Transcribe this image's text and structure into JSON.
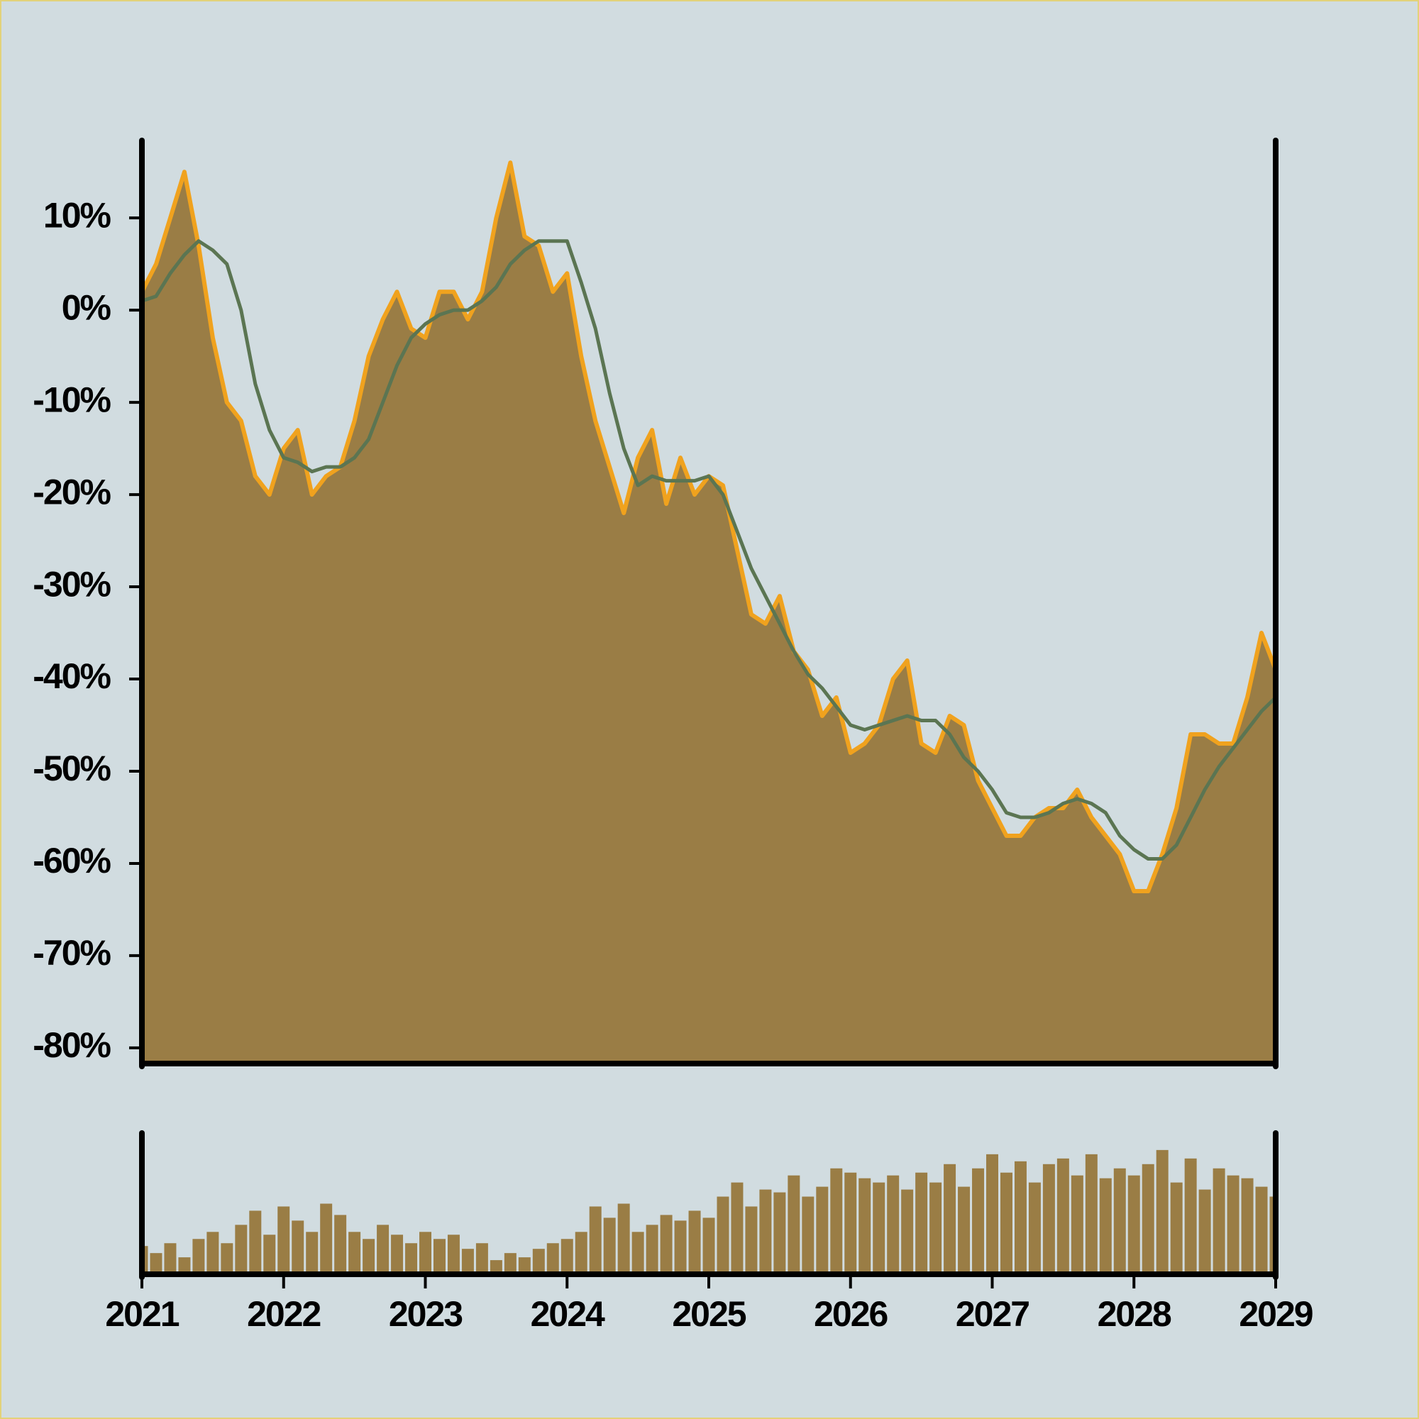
{
  "chart_data": [
    {
      "type": "area",
      "x": [
        2021.0,
        2021.1,
        2021.2,
        2021.3,
        2021.4,
        2021.5,
        2021.6,
        2021.7,
        2021.8,
        2021.9,
        2022.0,
        2022.1,
        2022.2,
        2022.3,
        2022.4,
        2022.5,
        2022.6,
        2022.7,
        2022.8,
        2022.9,
        2023.0,
        2023.1,
        2023.2,
        2023.3,
        2023.4,
        2023.5,
        2023.6,
        2023.7,
        2023.8,
        2023.9,
        2024.0,
        2024.1,
        2024.2,
        2024.3,
        2024.4,
        2024.5,
        2024.6,
        2024.7,
        2024.8,
        2024.9,
        2025.0,
        2025.1,
        2025.2,
        2025.3,
        2025.4,
        2025.5,
        2025.6,
        2025.7,
        2025.8,
        2025.9,
        2026.0,
        2026.1,
        2026.2,
        2026.3,
        2026.4,
        2026.5,
        2026.6,
        2026.7,
        2026.8,
        2026.9,
        2027.0,
        2027.1,
        2027.2,
        2027.3,
        2027.4,
        2027.5,
        2027.6,
        2027.7,
        2027.8,
        2027.9,
        2028.0,
        2028.1,
        2028.2,
        2028.3,
        2028.4,
        2028.5,
        2028.6,
        2028.7,
        2028.8,
        2028.9,
        2029.0
      ],
      "series": [
        {
          "kind": "area",
          "color": "#f0a21e",
          "fill": "#9a7d45",
          "values": [
            2,
            5,
            10,
            15,
            7,
            -3,
            -10,
            -12,
            -18,
            -20,
            -15,
            -13,
            -20,
            -18,
            -17,
            -12,
            -5,
            -1,
            2,
            -2,
            -3,
            2,
            2,
            -1,
            2,
            10,
            16,
            8,
            7,
            2,
            4,
            -5,
            -12,
            -17,
            -22,
            -16,
            -13,
            -21,
            -16,
            -20,
            -18,
            -19,
            -26,
            -33,
            -34,
            -31,
            -37,
            -39,
            -44,
            -42,
            -48,
            -47,
            -45,
            -40,
            -38,
            -47,
            -48,
            -44,
            -45,
            -51,
            -54,
            -57,
            -57,
            -55,
            -54,
            -54,
            -52,
            -55,
            -57,
            -59,
            -63,
            -63,
            -59,
            -54,
            -46,
            -46,
            -47,
            -47,
            -42,
            -35,
            -39
          ]
        },
        {
          "kind": "line",
          "color": "#5b7552",
          "values": [
            1,
            1.5,
            4,
            6,
            7.5,
            6.5,
            5,
            0,
            -8,
            -13,
            -16,
            -16.5,
            -17.5,
            -17,
            -17,
            -16,
            -14,
            -10,
            -6,
            -3,
            -1.5,
            -0.5,
            0,
            0,
            1,
            2.5,
            5,
            6.5,
            7.5,
            7.5,
            7.5,
            3,
            -2,
            -9,
            -15,
            -19,
            -18,
            -18.5,
            -18.5,
            -18.5,
            -18,
            -20,
            -24,
            -28,
            -31,
            -34,
            -37,
            -39.5,
            -41,
            -43,
            -45,
            -45.5,
            -45,
            -44.5,
            -44,
            -44.5,
            -44.5,
            -46,
            -48.5,
            -50,
            -52,
            -54.5,
            -55,
            -55,
            -54.5,
            -53.5,
            -53,
            -53.5,
            -54.5,
            -57,
            -58.5,
            -59.5,
            -59.5,
            -58,
            -55,
            -52,
            -49.5,
            -47.5,
            -45.5,
            -43.5,
            -42
          ]
        }
      ],
      "xlim": [
        2021,
        2029
      ],
      "ylim": [
        -81.7,
        18.4
      ],
      "yticks": [
        {
          "value": 10,
          "label": "10%"
        },
        {
          "value": 0,
          "label": "0%"
        },
        {
          "value": -10,
          "label": "-10%"
        },
        {
          "value": -20,
          "label": "-20%"
        },
        {
          "value": -30,
          "label": "-30%"
        },
        {
          "value": -40,
          "label": "-40%"
        },
        {
          "value": -50,
          "label": "-50%"
        },
        {
          "value": -60,
          "label": "-60%"
        },
        {
          "value": -70,
          "label": "-70%"
        },
        {
          "value": -80,
          "label": "-80%"
        }
      ]
    },
    {
      "type": "bar",
      "x": [
        2021.0,
        2021.1,
        2021.2,
        2021.3,
        2021.4,
        2021.5,
        2021.6,
        2021.7,
        2021.8,
        2021.9,
        2022.0,
        2022.1,
        2022.2,
        2022.3,
        2022.4,
        2022.5,
        2022.6,
        2022.7,
        2022.8,
        2022.9,
        2023.0,
        2023.1,
        2023.2,
        2023.3,
        2023.4,
        2023.5,
        2023.6,
        2023.7,
        2023.8,
        2023.9,
        2024.0,
        2024.1,
        2024.2,
        2024.3,
        2024.4,
        2024.5,
        2024.6,
        2024.7,
        2024.8,
        2024.9,
        2025.0,
        2025.1,
        2025.2,
        2025.3,
        2025.4,
        2025.5,
        2025.6,
        2025.7,
        2025.8,
        2025.9,
        2026.0,
        2026.1,
        2026.2,
        2026.3,
        2026.4,
        2026.5,
        2026.6,
        2026.7,
        2026.8,
        2026.9,
        2027.0,
        2027.1,
        2027.2,
        2027.3,
        2027.4,
        2027.5,
        2027.6,
        2027.7,
        2027.8,
        2027.9,
        2028.0,
        2028.1,
        2028.2,
        2028.3,
        2028.4,
        2028.5,
        2028.6,
        2028.7,
        2028.8,
        2028.9,
        2029.0
      ],
      "values": [
        20,
        15,
        22,
        12,
        25,
        30,
        22,
        35,
        45,
        28,
        48,
        38,
        30,
        50,
        42,
        30,
        25,
        35,
        28,
        22,
        30,
        25,
        28,
        18,
        22,
        10,
        15,
        12,
        18,
        22,
        25,
        30,
        48,
        40,
        50,
        30,
        35,
        42,
        38,
        45,
        40,
        55,
        65,
        48,
        60,
        58,
        70,
        55,
        62,
        75,
        72,
        68,
        65,
        70,
        60,
        72,
        65,
        78,
        62,
        75,
        85,
        72,
        80,
        65,
        78,
        82,
        70,
        85,
        68,
        75,
        70,
        78,
        88,
        65,
        82,
        60,
        75,
        70,
        68,
        62,
        55
      ],
      "color": "#9a7d45",
      "xlim": [
        2021,
        2029
      ],
      "ylim": [
        0,
        100
      ],
      "xticks": [
        2021,
        2022,
        2023,
        2024,
        2025,
        2026,
        2027,
        2028,
        2029
      ]
    }
  ]
}
